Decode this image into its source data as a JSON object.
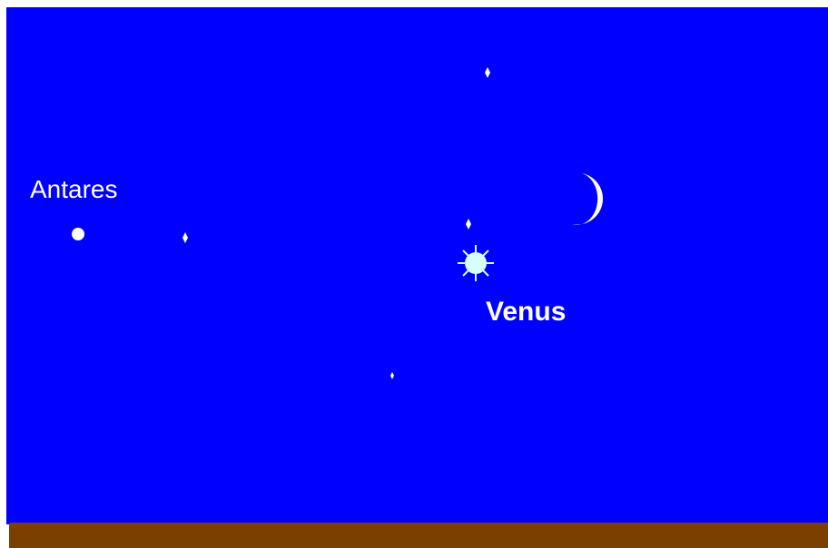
{
  "labels": {
    "antares": "Antares",
    "venus": "Venus"
  }
}
